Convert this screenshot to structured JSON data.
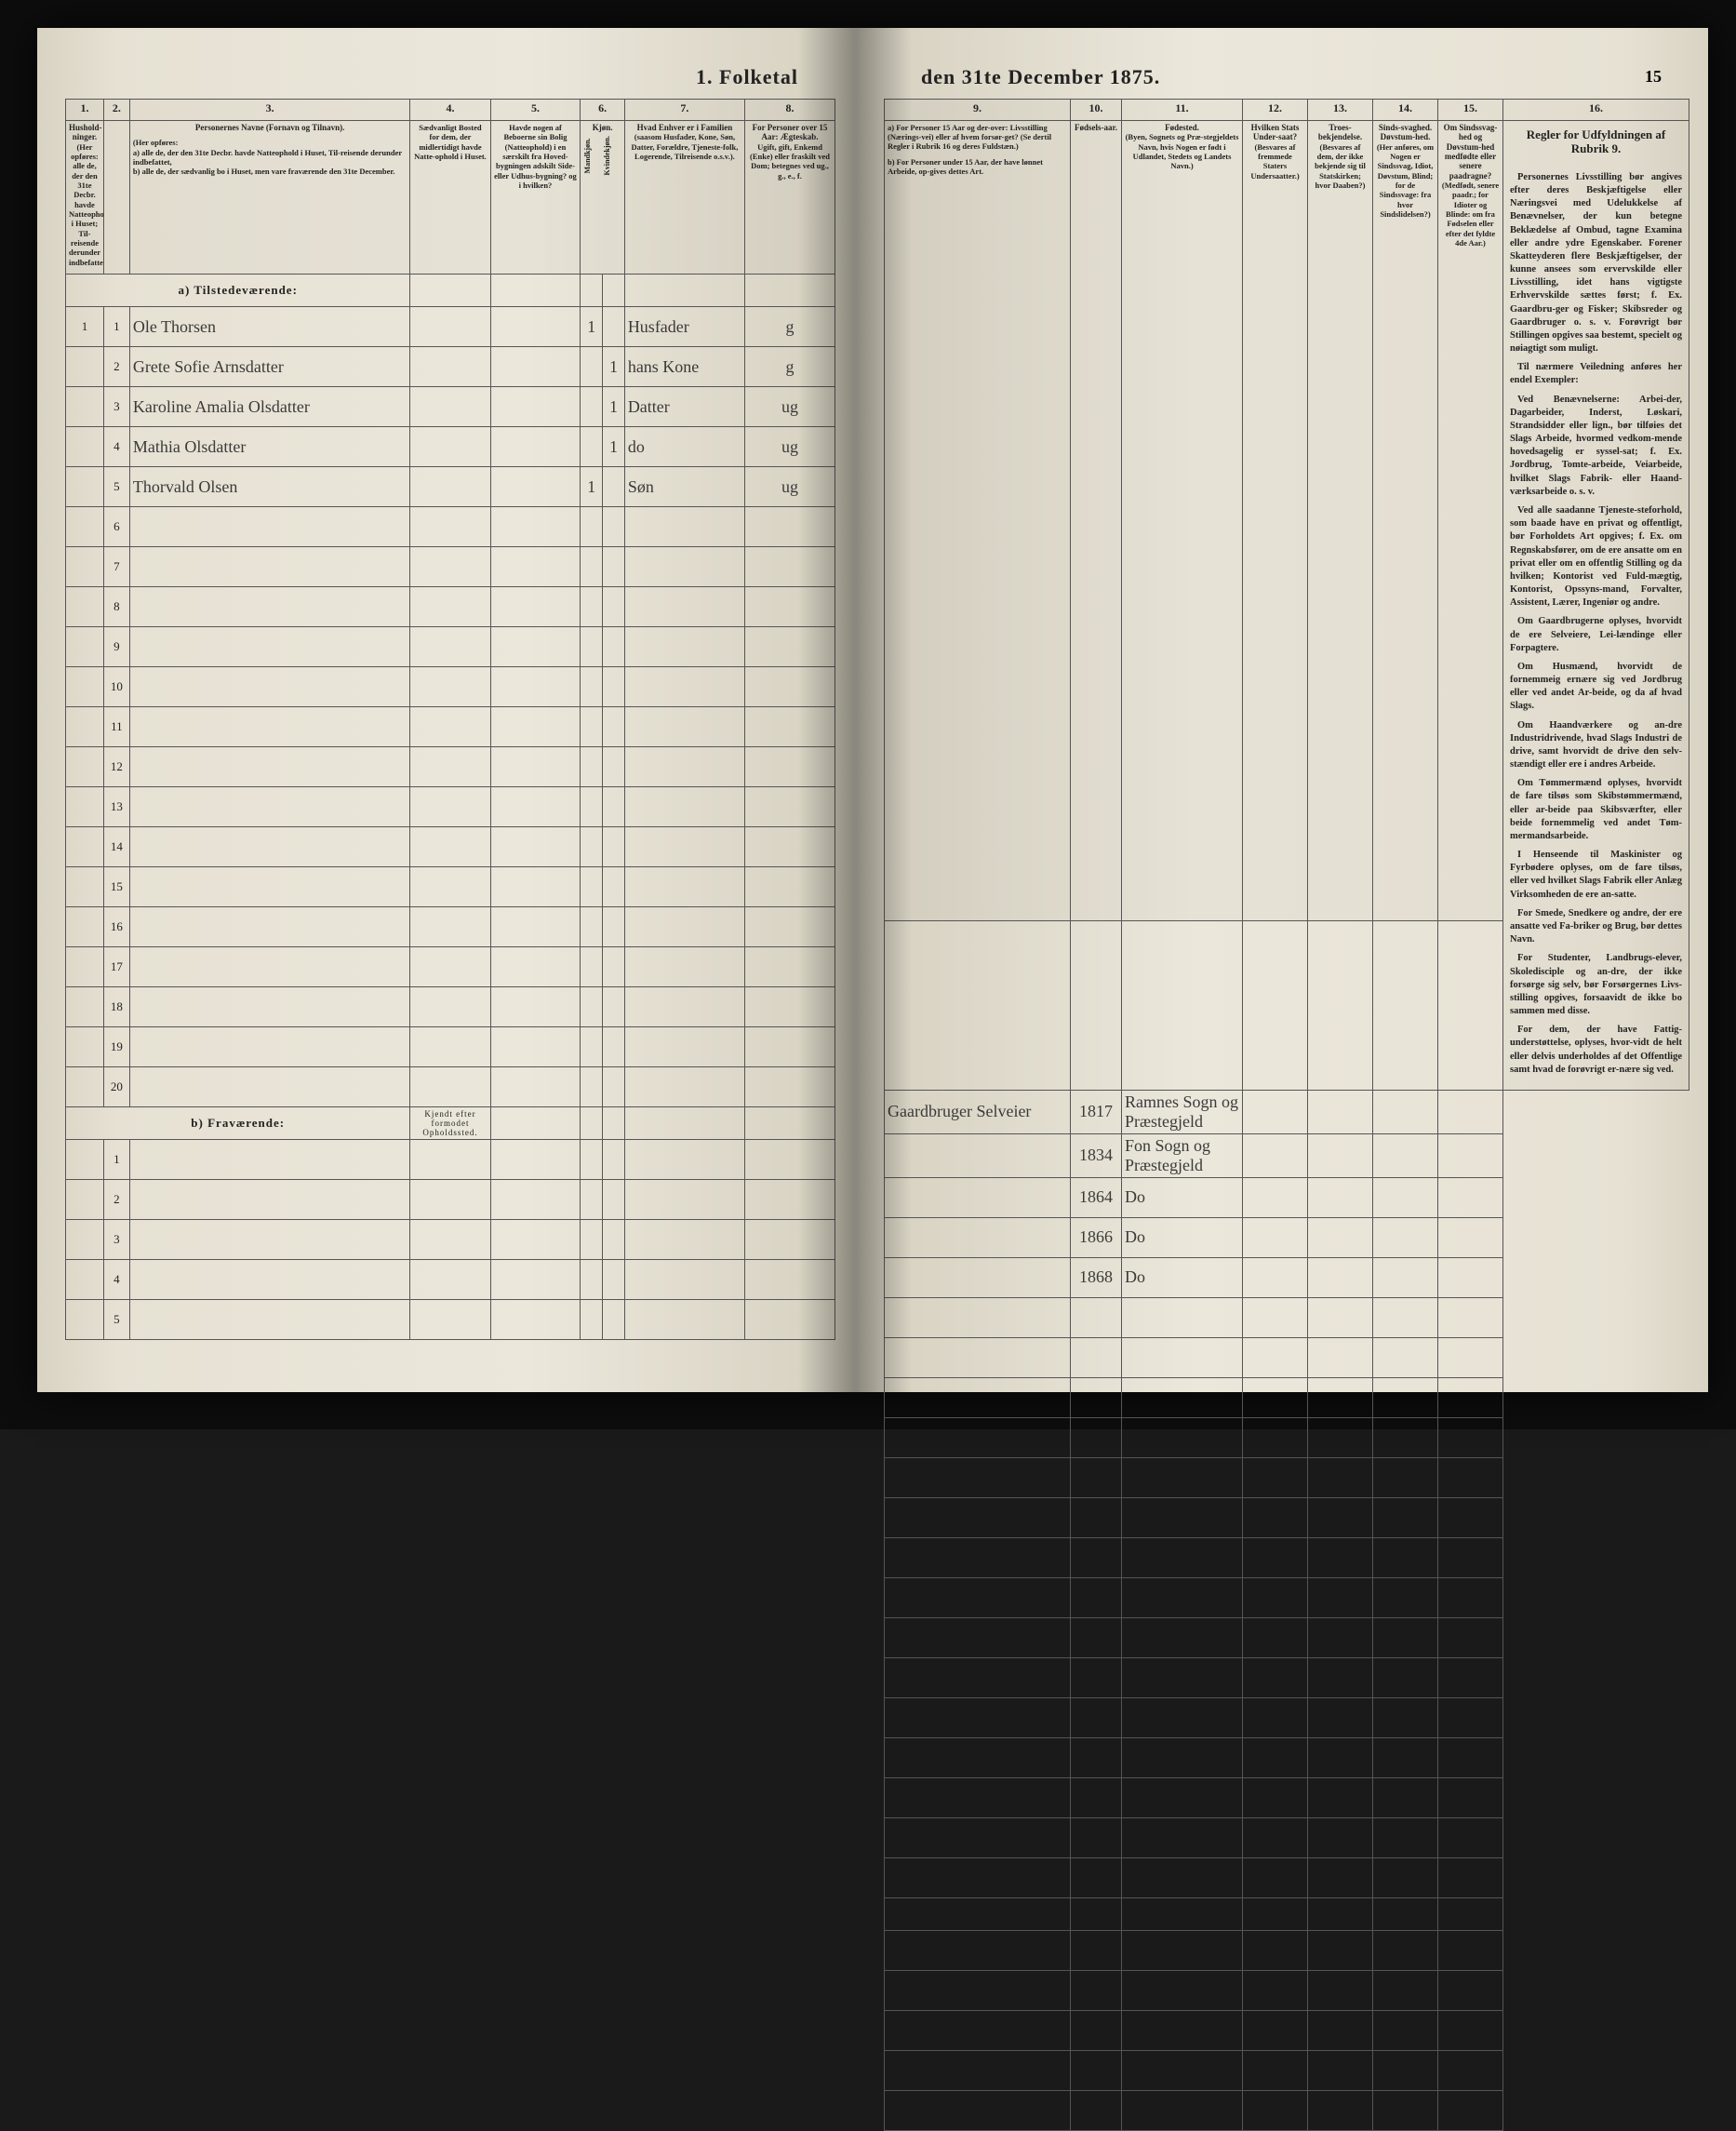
{
  "document": {
    "title_left": "1. Folketal",
    "title_right": "den 31te December 1875.",
    "page_number": "15",
    "background_color": "#e8e4d8",
    "ink_color": "#222222",
    "handwriting_color": "#3a3a3a"
  },
  "columns_left": {
    "nums": [
      "1.",
      "2.",
      "3.",
      "4.",
      "5.",
      "6.",
      "7.",
      "8."
    ],
    "h1": "Hushold-ninger.",
    "h1_sub": "(Her opføres: alle de, der den 31te Decbr. havde Natteophold i Huset; Til-reisende derunder indbefattet.)",
    "h2": "",
    "h3": "Personernes Navne (Fornavn og Tilnavn).",
    "h3_sub_a": "a) alle de, der den 31te Decbr. havde Natteophold i Huset, Til-reisende derunder indbefattet,",
    "h3_sub_b": "b) alle de, der sædvanlig bo i Huset, men vare fraværende den 31te December.",
    "h4": "Sædvanligt Bosted for dem, der midlertidigt havde Natte-ophold i Huset.",
    "h5": "Havde nogen af Beboerne sin Bolig (Natteophold) i en særskilt fra Hoved-bygningen adskilt Side-eller Udhus-bygning? og i hvilken?",
    "h6_title": "Kjøn.",
    "h6a": "Mandkjøn.",
    "h6b": "Kvindekjøn.",
    "h7": "Hvad Enhver er i Familien",
    "h7_sub": "(saasom Husfader, Kone, Søn, Datter, Forældre, Tjeneste-folk, Logerende, Tilreisende o.s.v.).",
    "h8": "For Personer over 15 Aar: Ægteskab.",
    "h8_sub": "Ugift, gift, Enkemd (Enke) eller fraskilt ved Dom; betegnes ved ug., g., e., f."
  },
  "columns_right": {
    "nums": [
      "9.",
      "10.",
      "11.",
      "12.",
      "13.",
      "14.",
      "15."
    ],
    "h9_a": "a) For Personer 15 Aar og der-over: Livsstilling (Nærings-vei) eller af hvem forsør-get? (Se dertil Regler i Rubrik 16 og deres Fuldstæn.)",
    "h9_b": "b) For Personer under 15 Aar, der have lønnet Arbeide, op-gives dettes Art.",
    "h10": "Fødsels-aar.",
    "h11": "Fødested.",
    "h11_sub": "(Byen, Sognets og Præ-stegjeldets Navn, hvis Nogen er født i Udlandet, Stedets og Landets Navn.)",
    "h12": "Hvilken Stats Under-saat?",
    "h12_sub": "(Besvares af fremmede Staters Undersaatter.)",
    "h13": "Troes-bekjendelse.",
    "h13_sub": "(Besvares af dem, der ikke bekjende sig til Statskirken; hvor Daaben?)",
    "h14": "Sinds-svaghed. Døvstum-hed.",
    "h14_sub": "(Her anføres, om Nogen er Sindssvag, Idiot, Døvstum, Blind; for de Sindssvage: fra hvor Sindslidelsen?)",
    "h15": "Om Sindssvag-hed og Døvstum-hed medfødte eller senere paadragne?",
    "h15_sub": "(Medfødt, senere paadr.; for Idioter og Blinde: om fra Fødselen eller efter det fyldte 4de Aar.)"
  },
  "instructions": {
    "title": "Regler for Udfyldningen af Rubrik 9.",
    "body": "Personernes Livsstilling bør angives efter deres Beskjæftigelse eller Næringsvei med Udelukkelse af Benævnelser, der kun betegne Beklædelse af Ombud, tagne Examina eller andre ydre Egenskaber. Forener Skatteyderen flere Beskjæftigelser, der kunne ansees som ervervskilde eller Livsstilling, idet hans vigtigste Erhvervskilde sættes først; f. Ex. Gaardbru-ger og Fisker; Skibsreder og Gaardbruger o. s. v. Forøvrigt bør Stillingen opgives saa bestemt, specielt og nøiagtigt som muligt.\n\nTil nærmere Veiledning anføres her endel Exempler:\n\nVed Benævnelserne: Arbei-der, Dagarbeider, Inderst, Løskari, Strandsidder eller lign., bør tilføies det Slags Arbeide, hvormed vedkom-mende hovedsagelig er syssel-sat; f. Ex. Jordbrug, Tomte-arbeide, Veiarbeide, hvilket Slags Fabrik- eller Haand-værksarbeide o. s. v.\n\nVed alle saadanne Tjeneste-steforhold, som baade have en privat og offentligt, bør Forholdets Art opgives; f. Ex. om Regnskabsfører, om de ere ansatte om en privat eller om en offentlig Stilling og da hvilken; Kontorist ved Fuld-mægtig, Kontorist, Opssyns-mand, Forvalter, Assistent, Lærer, Ingeniør og andre.\n\nOm Gaardbrugerne oplyses, hvorvidt de ere Selveiere, Lei-lændinge eller Forpagtere.\n\nOm Husmænd, hvorvidt de fornemmeig ernære sig ved Jordbrug eller ved andet Ar-beide, og da af hvad Slags.\n\nOm Haandværkere og an-dre Industridrivende, hvad Slags Industri de drive, samt hvorvidt de drive den selv-stændigt eller ere i andres Arbeide.\n\nOm Tømmermænd oplyses, hvorvidt de fare tilsøs som Skibstømmermænd, eller ar-beide paa Skibsværfter, eller beide fornemmelig ved andet Tøm-mermandsarbeide.\n\nI Henseende til Maskinister og Fyrbødere oplyses, om de fare tilsøs, eller ved hvilket Slags Fabrik eller Anlæg Virksomheden de ere an-satte.\n\nFor Smede, Snedkere og andre, der ere ansatte ved Fa-briker og Brug, bør dettes Navn.\n\nFor Studenter, Landbrugs-elever, Skoledisciple og an-dre, der ikke forsørge sig selv, bør Forsørgernes Livs-stilling opgives, forsaavidt de ikke bo sammen med disse.\n\nFor dem, der have Fattig-understøttelse, oplyses, hvor-vidt de helt eller delvis underholdes af det Offentlige samt hvad de forøvrigt er-nære sig ved."
  },
  "sections": {
    "a_label": "a) Tilstedeværende:",
    "b_label": "b) Fraværende:",
    "b_col4": "Kjendt efter formodet Opholdssted."
  },
  "entries": [
    {
      "row": "1",
      "hh": "1",
      "name": "Ole Thorsen",
      "col6a": "1",
      "col6b": "",
      "col7": "Husfader",
      "col8": "g",
      "col9": "Gaardbruger Selveier",
      "col10": "1817",
      "col11": "Ramnes Sogn og Præstegjeld"
    },
    {
      "row": "2",
      "hh": "",
      "name": "Grete Sofie Arnsdatter",
      "col6a": "",
      "col6b": "1",
      "col7": "hans Kone",
      "col8": "g",
      "col9": "",
      "col10": "1834",
      "col11": "Fon Sogn og Præstegjeld"
    },
    {
      "row": "3",
      "hh": "",
      "name": "Karoline Amalia Olsdatter",
      "col6a": "",
      "col6b": "1",
      "col7": "Datter",
      "col8": "ug",
      "col9": "",
      "col10": "1864",
      "col11": "Do"
    },
    {
      "row": "4",
      "hh": "",
      "name": "Mathia Olsdatter",
      "col6a": "",
      "col6b": "1",
      "col7": "do",
      "col8": "ug",
      "col9": "",
      "col10": "1866",
      "col11": "Do"
    },
    {
      "row": "5",
      "hh": "",
      "name": "Thorvald Olsen",
      "col6a": "1",
      "col6b": "",
      "col7": "Søn",
      "col8": "ug",
      "col9": "",
      "col10": "1868",
      "col11": "Do"
    }
  ],
  "empty_rows_a": [
    "6",
    "7",
    "8",
    "9",
    "10",
    "11",
    "12",
    "13",
    "14",
    "15",
    "16",
    "17",
    "18",
    "19",
    "20"
  ],
  "empty_rows_b": [
    "1",
    "2",
    "3",
    "4",
    "5"
  ]
}
